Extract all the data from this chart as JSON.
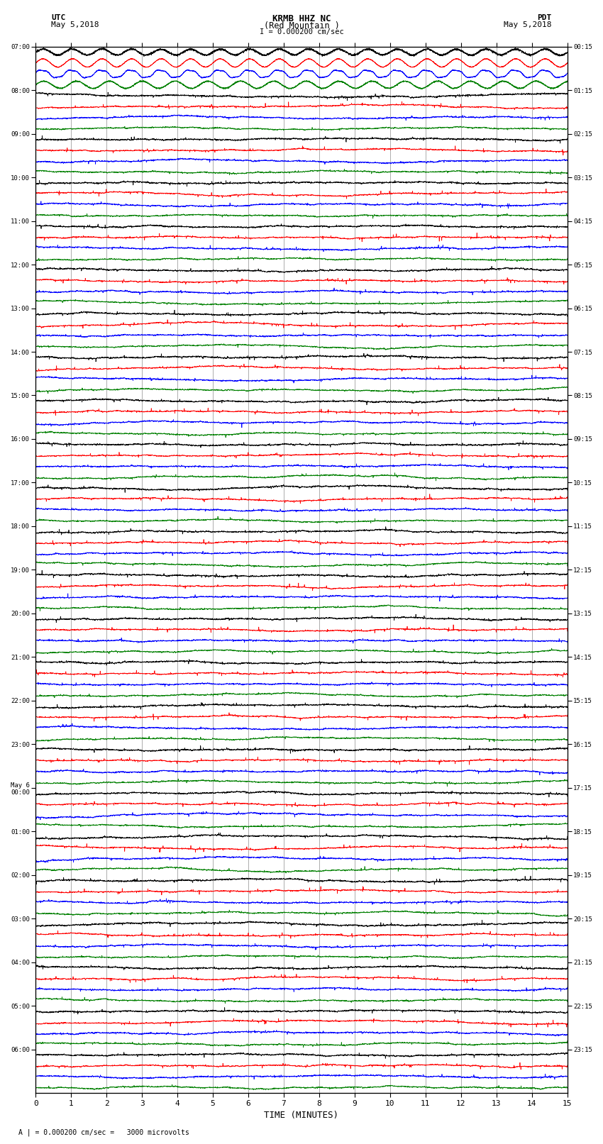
{
  "title_line1": "KRMB HHZ NC",
  "title_line2": "(Red Mountain )",
  "title_scale": "I = 0.000200 cm/sec",
  "left_label_top": "UTC",
  "left_label_date": "May 5,2018",
  "right_label_top": "PDT",
  "right_label_date": "May 5,2018",
  "xlabel": "TIME (MINUTES)",
  "bottom_note": "A | = 0.000200 cm/sec =   3000 microvolts",
  "utc_times_left": [
    "07:00",
    "08:00",
    "09:00",
    "10:00",
    "11:00",
    "12:00",
    "13:00",
    "14:00",
    "15:00",
    "16:00",
    "17:00",
    "18:00",
    "19:00",
    "20:00",
    "21:00",
    "22:00",
    "23:00",
    "May 6\n00:00",
    "01:00",
    "02:00",
    "03:00",
    "04:00",
    "05:00",
    "06:00"
  ],
  "pdt_times_right": [
    "00:15",
    "01:15",
    "02:15",
    "03:15",
    "04:15",
    "05:15",
    "06:15",
    "07:15",
    "08:15",
    "09:15",
    "10:15",
    "11:15",
    "12:15",
    "13:15",
    "14:15",
    "15:15",
    "16:15",
    "17:15",
    "18:15",
    "19:15",
    "20:15",
    "21:15",
    "22:15",
    "23:15"
  ],
  "n_rows": 24,
  "n_minutes": 15,
  "trace_colors": [
    "black",
    "red",
    "blue",
    "green"
  ],
  "bg_color": "white",
  "grid_color": "#777777",
  "seed": 12345
}
